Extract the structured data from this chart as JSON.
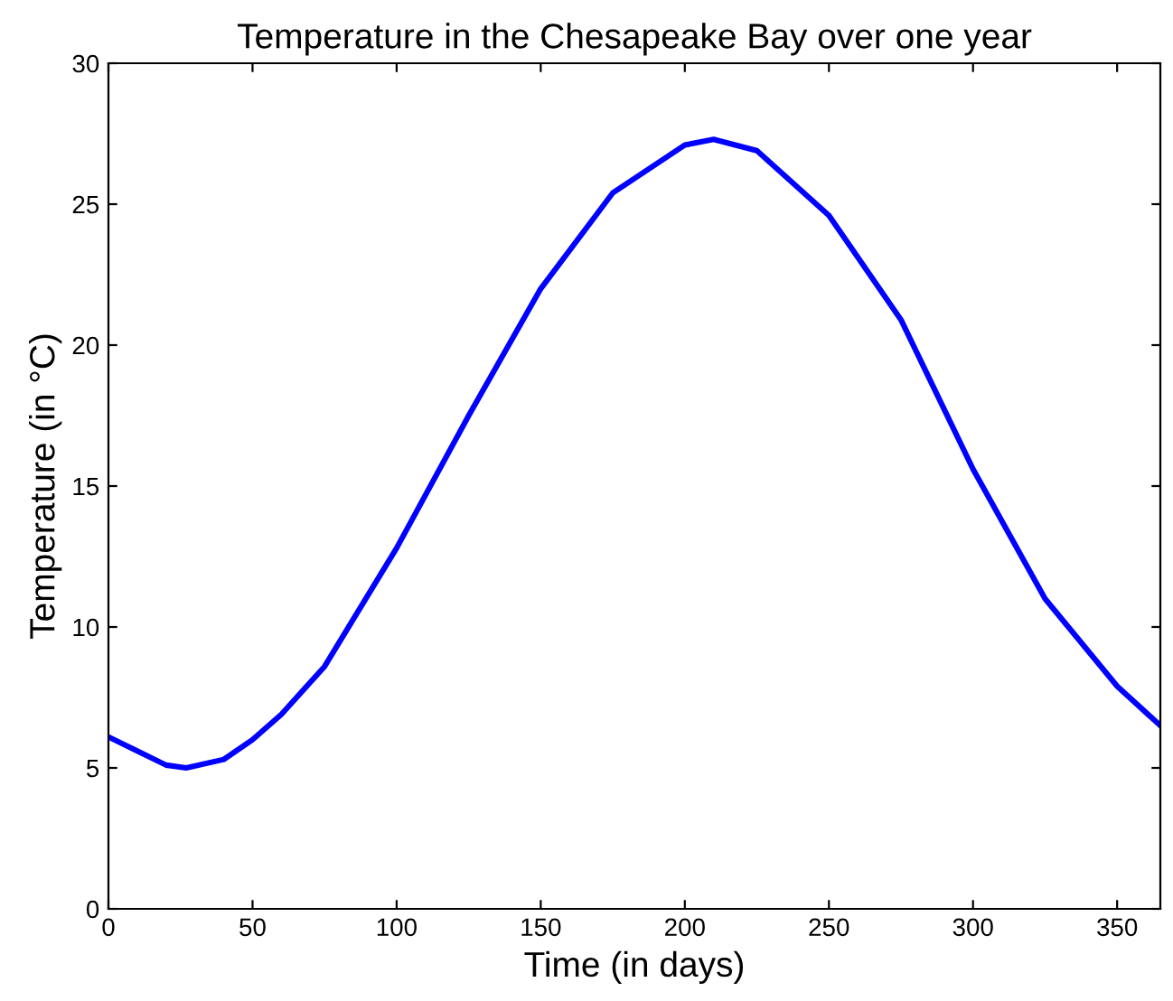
{
  "chart_data": {
    "type": "line",
    "title": "Temperature in the Chesapeake Bay over one year",
    "xlabel": "Time (in days)",
    "ylabel": "Temperature (in °C)",
    "series": [
      {
        "color": "#0000ff",
        "x": [
          0,
          10,
          20,
          27,
          40,
          50,
          60,
          75,
          100,
          125,
          150,
          175,
          200,
          210,
          225,
          250,
          275,
          300,
          325,
          350,
          365
        ],
        "values": [
          6.1,
          5.6,
          5.1,
          5.0,
          5.3,
          6.0,
          6.9,
          8.6,
          12.8,
          17.5,
          22.0,
          25.4,
          27.1,
          27.3,
          26.9,
          24.6,
          20.9,
          15.6,
          11.0,
          7.9,
          6.5
        ]
      }
    ],
    "xlim": [
      0,
      365
    ],
    "ylim": [
      0,
      30
    ],
    "xticks": [
      0,
      50,
      100,
      150,
      200,
      250,
      300,
      350
    ],
    "yticks": [
      0,
      5,
      10,
      15,
      20,
      25,
      30
    ],
    "grid": false,
    "legend": false,
    "line_style": "solid",
    "marker": "none"
  }
}
